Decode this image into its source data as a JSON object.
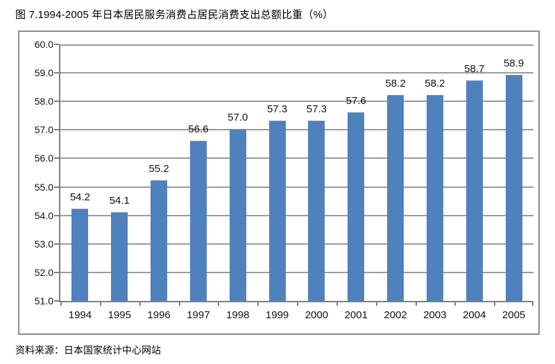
{
  "colors": {
    "bar_fill": "#4F81BD",
    "bar_edge": "#6d97c6",
    "gridline": "#9a9a9a",
    "axis": "#7f7f7f",
    "chart_border": "#8c8c8c",
    "text": "#111111"
  },
  "chart_data": {
    "type": "bar",
    "title": "图 7.1994-2005 年日本居民服务消费占居民消费支出总额比重（%）",
    "source_note": "资料来源：日本国家统计中心网站",
    "categories": [
      "1994",
      "1995",
      "1996",
      "1997",
      "1998",
      "1999",
      "2000",
      "2001",
      "2002",
      "2003",
      "2004",
      "2005"
    ],
    "values": [
      54.2,
      54.1,
      55.2,
      56.6,
      57.0,
      57.3,
      57.3,
      57.6,
      58.2,
      58.2,
      58.7,
      58.9
    ],
    "data_labels": [
      "54.2",
      "54.1",
      "55.2",
      "56.6",
      "57.0",
      "57.3",
      "57.3",
      "57.6",
      "58.2",
      "58.2",
      "58.7",
      "58.9"
    ],
    "xlabel": "",
    "ylabel": "",
    "ylim": [
      51.0,
      60.0
    ],
    "ytick_step": 1.0,
    "ytick_labels": [
      "51.0",
      "52.0",
      "53.0",
      "54.0",
      "55.0",
      "56.0",
      "57.0",
      "58.0",
      "59.0",
      "60.0"
    ],
    "grid": true,
    "legend_position": "none",
    "bar_color": "#4F81BD"
  }
}
